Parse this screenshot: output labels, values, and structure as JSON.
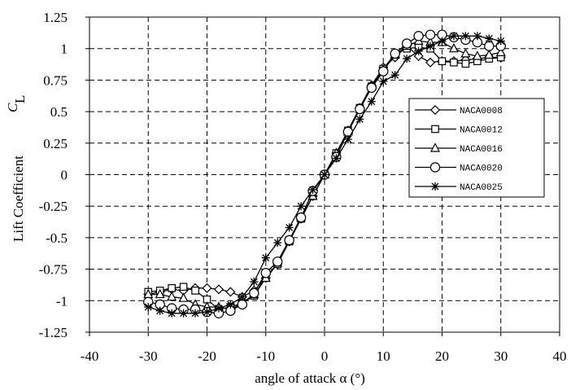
{
  "chart_data": {
    "type": "line",
    "title": "",
    "xlabel": "angle of attack  α (°)",
    "ylabel_main": "Lift Coefficient",
    "ylabel_symbol": "C",
    "ylabel_sub": "L",
    "xlim": [
      -40,
      40
    ],
    "ylim": [
      -1.25,
      1.25
    ],
    "xticks": [
      -40,
      -30,
      -20,
      -10,
      0,
      10,
      20,
      30,
      40
    ],
    "yticks": [
      1.25,
      1,
      0.75,
      0.5,
      0.25,
      0,
      -0.25,
      -0.5,
      -0.75,
      -1,
      -1.25
    ],
    "ytick_labels": [
      "1.25",
      "1",
      "0.75",
      "0.5",
      "0.25",
      "0",
      "-0.25",
      "-0.5",
      "-0.75",
      "-1",
      "-1.25"
    ],
    "grid": true,
    "legend_position": "right",
    "series": [
      {
        "name": "NACA0008",
        "marker": "diamond",
        "x": [
          -30,
          -28,
          -26,
          -24,
          -22,
          -20,
          -18,
          -16,
          -14,
          -12,
          -10,
          -8,
          -6,
          -4,
          -2,
          0,
          2,
          4,
          6,
          8,
          10,
          12,
          14,
          16,
          18,
          20,
          22,
          24,
          26,
          28,
          30
        ],
        "y": [
          -0.95,
          -0.93,
          -0.91,
          -0.92,
          -0.9,
          -0.9,
          -0.91,
          -0.93,
          -0.97,
          -0.92,
          -0.82,
          -0.71,
          -0.53,
          -0.35,
          -0.17,
          0,
          0.17,
          0.35,
          0.53,
          0.71,
          0.85,
          0.93,
          1.02,
          0.94,
          0.89,
          0.9,
          0.9,
          0.91,
          0.92,
          0.93,
          0.93
        ]
      },
      {
        "name": "NACA0012",
        "marker": "square",
        "x": [
          -30,
          -28,
          -26,
          -24,
          -22,
          -20,
          -18,
          -16,
          -14,
          -12,
          -10,
          -8,
          -6,
          -4,
          -2,
          0,
          2,
          4,
          6,
          8,
          10,
          12,
          14,
          16,
          18,
          20,
          22,
          24,
          26,
          28,
          30
        ],
        "y": [
          -0.93,
          -0.92,
          -0.9,
          -0.89,
          -0.92,
          -0.99,
          -1.07,
          -1.05,
          -1.02,
          -0.96,
          -0.82,
          -0.71,
          -0.53,
          -0.35,
          -0.17,
          0,
          0.17,
          0.35,
          0.53,
          0.7,
          0.84,
          0.96,
          1.0,
          1.01,
          1.0,
          0.9,
          0.89,
          0.88,
          0.9,
          0.92,
          0.93
        ]
      },
      {
        "name": "NACA0016",
        "marker": "triangle",
        "x": [
          -30,
          -28,
          -26,
          -24,
          -22,
          -20,
          -18,
          -16,
          -14,
          -12,
          -10,
          -8,
          -6,
          -4,
          -2,
          0,
          2,
          4,
          6,
          8,
          10,
          12,
          14,
          16,
          18,
          20,
          22,
          24,
          26,
          28,
          30
        ],
        "y": [
          -0.95,
          -0.95,
          -0.97,
          -0.98,
          -1.03,
          -1.05,
          -1.05,
          -1.07,
          -1.02,
          -0.95,
          -0.82,
          -0.7,
          -0.52,
          -0.34,
          -0.17,
          0,
          0.17,
          0.34,
          0.52,
          0.7,
          0.83,
          0.95,
          1.02,
          1.06,
          1.05,
          1.05,
          1.0,
          0.96,
          0.94,
          0.95,
          0.97
        ]
      },
      {
        "name": "NACA0020",
        "marker": "circle",
        "x": [
          -30,
          -28,
          -26,
          -24,
          -22,
          -20,
          -18,
          -16,
          -14,
          -12,
          -10,
          -8,
          -6,
          -4,
          -2,
          0,
          2,
          4,
          6,
          8,
          10,
          12,
          14,
          16,
          18,
          20,
          22,
          24,
          26,
          28,
          30
        ],
        "y": [
          -1.01,
          -1.03,
          -1.06,
          -1.07,
          -1.07,
          -1.09,
          -1.1,
          -1.08,
          -1.03,
          -0.94,
          -0.78,
          -0.69,
          -0.52,
          -0.34,
          -0.13,
          0,
          0.14,
          0.34,
          0.52,
          0.69,
          0.82,
          0.96,
          1.04,
          1.1,
          1.11,
          1.11,
          1.09,
          1.07,
          1.05,
          1.02,
          1.02
        ]
      },
      {
        "name": "NACA0025",
        "marker": "asterisk",
        "x": [
          -30,
          -28,
          -26,
          -24,
          -22,
          -20,
          -18,
          -16,
          -14,
          -12,
          -10,
          -8,
          -6,
          -4,
          -2,
          0,
          2,
          4,
          6,
          8,
          10,
          12,
          14,
          16,
          18,
          20,
          22,
          24,
          26,
          28,
          30
        ],
        "y": [
          -1.05,
          -1.08,
          -1.1,
          -1.1,
          -1.1,
          -1.09,
          -1.06,
          -1.03,
          -0.97,
          -0.85,
          -0.66,
          -0.54,
          -0.42,
          -0.25,
          -0.12,
          0,
          0.13,
          0.28,
          0.44,
          0.58,
          0.74,
          0.79,
          0.92,
          0.98,
          1.02,
          1.06,
          1.1,
          1.1,
          1.1,
          1.08,
          1.06
        ]
      }
    ]
  }
}
